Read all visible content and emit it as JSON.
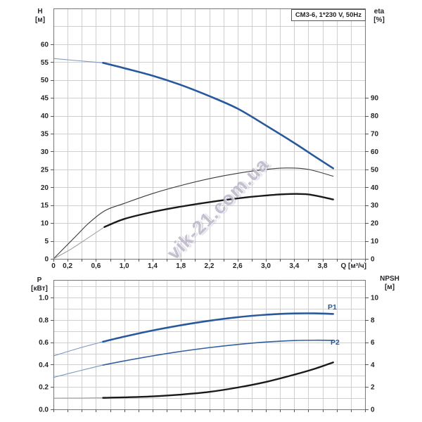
{
  "watermark": {
    "text": "vik-21.com.ua"
  },
  "styles": {
    "thick-blue": {
      "color": "#27599c",
      "width": 2.6
    },
    "thin-blue": {
      "color": "#7d98c2",
      "width": 1.1
    },
    "med-blue": {
      "color": "#32609f",
      "width": 1.6
    },
    "thin-dark": {
      "color": "#3a3a3a",
      "width": 1.1
    },
    "thick-black": {
      "color": "#1a1a1a",
      "width": 2.4
    },
    "thin-gray": {
      "color": "#9a9a9a",
      "width": 1.0
    }
  },
  "chart_data": [
    {
      "type": "line",
      "title": "CM3-6, 1*230 V, 50Hz",
      "x_axis": {
        "label": "Q [м³/ч]",
        "range": [
          0,
          4.4
        ],
        "grid_step": 0.2,
        "ticks": [
          {
            "v": 0,
            "t": "0"
          },
          {
            "v": 0.2,
            "t": "0,2"
          },
          {
            "v": 0.6,
            "t": "0,6"
          },
          {
            "v": 1.0,
            "t": "1,0"
          },
          {
            "v": 1.4,
            "t": "1,4"
          },
          {
            "v": 1.8,
            "t": "1,8"
          },
          {
            "v": 2.2,
            "t": "2,2"
          },
          {
            "v": 2.6,
            "t": "2,6"
          },
          {
            "v": 3.0,
            "t": "3,0"
          },
          {
            "v": 3.4,
            "t": "3,4"
          },
          {
            "v": 3.8,
            "t": "3,8"
          }
        ]
      },
      "left_axis": {
        "label": "H",
        "unit": "[м]",
        "range": [
          0,
          70
        ],
        "grid_step": 5,
        "ticks": [
          0,
          5,
          10,
          15,
          20,
          25,
          30,
          35,
          40,
          45,
          50,
          55,
          60
        ]
      },
      "right_axis": {
        "label": "eta",
        "unit": "[%]",
        "scale_note": "eta value = 2 x H-axis value",
        "ticks": [
          0,
          10,
          20,
          30,
          40,
          50,
          60,
          70,
          80,
          90
        ]
      },
      "series": [
        {
          "name": "H-curve-lead",
          "axis": "left",
          "style": "thin-blue",
          "points": [
            [
              0,
              56
            ],
            [
              0.4,
              55.3
            ],
            [
              0.7,
              54.8
            ]
          ]
        },
        {
          "name": "H-curve",
          "axis": "left",
          "style": "thick-blue",
          "points": [
            [
              0.7,
              54.8
            ],
            [
              1.0,
              53.3
            ],
            [
              1.4,
              51.2
            ],
            [
              1.8,
              48.6
            ],
            [
              2.2,
              45.5
            ],
            [
              2.6,
              42.0
            ],
            [
              3.0,
              37.3
            ],
            [
              3.4,
              32.4
            ],
            [
              3.7,
              28.5
            ],
            [
              3.95,
              25.3
            ]
          ]
        },
        {
          "name": "eta-pump-curve",
          "axis": "right",
          "style": "thin-dark",
          "points": [
            [
              0,
              0
            ],
            [
              0.3,
              12
            ],
            [
              0.5,
              20
            ],
            [
              0.73,
              27
            ],
            [
              1.0,
              31
            ],
            [
              1.4,
              36.5
            ],
            [
              1.8,
              41
            ],
            [
              2.2,
              44.8
            ],
            [
              2.6,
              47.8
            ],
            [
              3.0,
              50
            ],
            [
              3.3,
              50.8
            ],
            [
              3.6,
              50
            ],
            [
              3.95,
              46.2
            ]
          ]
        },
        {
          "name": "eta-total-lead",
          "axis": "right",
          "style": "thin-gray",
          "points": [
            [
              0,
              0
            ],
            [
              0.25,
              5.5
            ],
            [
              0.5,
              12
            ],
            [
              0.72,
              17.8
            ]
          ]
        },
        {
          "name": "eta-total-curve",
          "axis": "right",
          "style": "thick-black",
          "points": [
            [
              0.72,
              17.8
            ],
            [
              1.0,
              22.3
            ],
            [
              1.4,
              26.2
            ],
            [
              1.8,
              29.2
            ],
            [
              2.2,
              31.7
            ],
            [
              2.6,
              33.8
            ],
            [
              3.0,
              35.4
            ],
            [
              3.3,
              36.2
            ],
            [
              3.6,
              36.0
            ],
            [
              3.95,
              33.2
            ]
          ]
        }
      ]
    },
    {
      "type": "line",
      "title": "",
      "x_axis": {
        "label": "",
        "range": [
          0,
          4.4
        ],
        "grid_step": 0.2,
        "ticks": []
      },
      "left_axis": {
        "label": "P",
        "unit": "[кВт]",
        "range": [
          0,
          1.157
        ],
        "grid_step": 0.1,
        "ticks": [
          "0.0",
          "0.2",
          "0.4",
          "0.6",
          "0.8",
          "1.0"
        ]
      },
      "right_axis": {
        "label": "NPSH",
        "unit": "[м]",
        "range": [
          0,
          11.57
        ],
        "ticks": [
          0,
          2,
          4,
          6,
          8,
          10
        ]
      },
      "series": [
        {
          "name": "P1-lead",
          "axis": "left",
          "style": "thin-blue",
          "points": [
            [
              0,
              0.478
            ],
            [
              0.35,
              0.545
            ],
            [
              0.7,
              0.605
            ]
          ]
        },
        {
          "name": "P1",
          "axis": "left",
          "style": "thick-blue",
          "points": [
            [
              0.7,
              0.605
            ],
            [
              1.0,
              0.65
            ],
            [
              1.4,
              0.705
            ],
            [
              1.8,
              0.752
            ],
            [
              2.2,
              0.792
            ],
            [
              2.6,
              0.824
            ],
            [
              3.0,
              0.846
            ],
            [
              3.4,
              0.857
            ],
            [
              3.7,
              0.858
            ],
            [
              3.95,
              0.853
            ]
          ]
        },
        {
          "name": "P2-lead",
          "axis": "left",
          "style": "thin-blue",
          "points": [
            [
              0,
              0.285
            ],
            [
              0.35,
              0.342
            ],
            [
              0.7,
              0.396
            ]
          ]
        },
        {
          "name": "P2",
          "axis": "left",
          "style": "med-blue",
          "points": [
            [
              0.7,
              0.396
            ],
            [
              1.0,
              0.433
            ],
            [
              1.4,
              0.478
            ],
            [
              1.8,
              0.518
            ],
            [
              2.2,
              0.552
            ],
            [
              2.6,
              0.58
            ],
            [
              3.0,
              0.602
            ],
            [
              3.4,
              0.615
            ],
            [
              3.7,
              0.618
            ],
            [
              3.95,
              0.616
            ]
          ]
        },
        {
          "name": "NPSH-lead",
          "axis": "right",
          "style": "thin-gray",
          "points": [
            [
              0,
              1.0
            ],
            [
              0.35,
              1.01
            ],
            [
              0.7,
              1.03
            ]
          ]
        },
        {
          "name": "NPSH-curve",
          "axis": "right",
          "style": "thick-black",
          "points": [
            [
              0.7,
              1.03
            ],
            [
              1.0,
              1.07
            ],
            [
              1.4,
              1.16
            ],
            [
              1.8,
              1.32
            ],
            [
              2.2,
              1.56
            ],
            [
              2.6,
              1.95
            ],
            [
              3.0,
              2.45
            ],
            [
              3.4,
              3.1
            ],
            [
              3.7,
              3.65
            ],
            [
              3.95,
              4.2
            ]
          ]
        }
      ],
      "series_labels": [
        {
          "text": "P1"
        },
        {
          "text": "P2"
        }
      ]
    }
  ]
}
